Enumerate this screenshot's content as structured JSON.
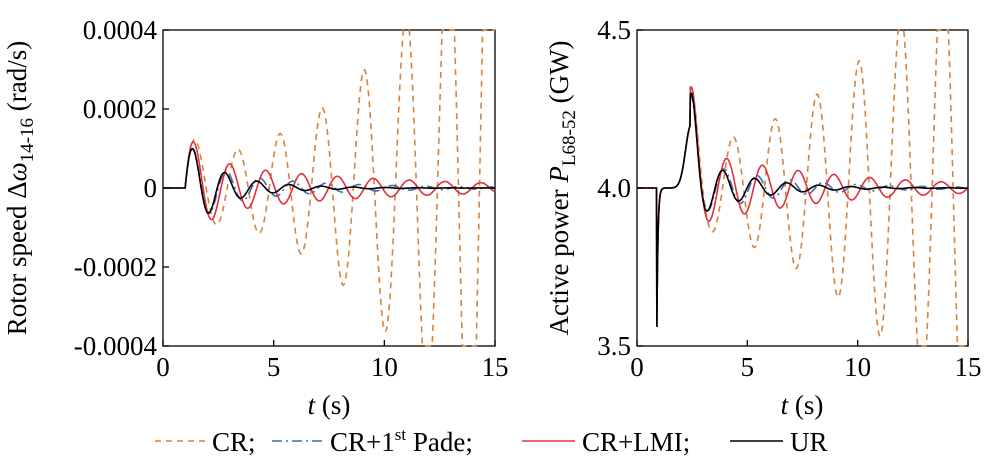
{
  "legend": [
    {
      "key": "cr",
      "label": "CR;"
    },
    {
      "key": "pade",
      "label_before": "CR+1",
      "label_sup": "st",
      "label_after": " Pade;"
    },
    {
      "key": "lmi",
      "label": "CR+LMI;"
    },
    {
      "key": "ur",
      "label": "UR"
    }
  ],
  "chart_data": [
    {
      "type": "line",
      "ylabel_prefix": "Rotor speed Δ",
      "ylabel_symbol": "ω",
      "ylabel_sub": "14-16",
      "ylabel_unit": " (rad/s)",
      "xlabel_var": "t",
      "xlabel_unit": " (s)",
      "xlim": [
        0,
        15
      ],
      "ylim": [
        -0.0004,
        0.0004
      ],
      "xticks": [
        0,
        5,
        10,
        15
      ],
      "xtick_labels": [
        "0",
        "5",
        "10",
        "15"
      ],
      "yticks": [
        -0.0004,
        -0.0002,
        0,
        0.0002,
        0.0004
      ],
      "ytick_labels": [
        "-0.0004",
        "-0.0002",
        "0",
        "0.0002",
        "0.0004"
      ],
      "series": [
        {
          "key": "cr",
          "name": "CR",
          "color": "#D9823B",
          "dash": "6,5",
          "model": {
            "kind": "rotor",
            "base": 7e-05,
            "growth": 0.205,
            "period": 1.9
          }
        },
        {
          "key": "pade",
          "name": "CR+1st Pade",
          "color": "#3F6BB5",
          "dash": "10,4,2,4",
          "model": {
            "kind": "rotor",
            "base": 4e-05,
            "growth": -0.22,
            "period": 1.5
          }
        },
        {
          "key": "lmi",
          "name": "CR+LMI",
          "color": "#E0303E",
          "dash": "",
          "model": {
            "kind": "rotor",
            "base": 6e-05,
            "growth": -0.12,
            "period": 1.62
          }
        },
        {
          "key": "ur",
          "name": "UR",
          "color": "#000000",
          "dash": "",
          "model": {
            "kind": "rotor",
            "base": 4e-05,
            "growth": -0.42,
            "period": 1.45
          }
        }
      ]
    },
    {
      "type": "line",
      "ylabel_prefix": "Active power ",
      "ylabel_symbol": "P",
      "ylabel_sub": "L68-52",
      "ylabel_unit": " (GW)",
      "xlabel_var": "t",
      "xlabel_unit": " (s)",
      "xlim": [
        0,
        15
      ],
      "ylim": [
        3.5,
        4.5
      ],
      "xticks": [
        0,
        5,
        10,
        15
      ],
      "xtick_labels": [
        "0",
        "5",
        "10",
        "15"
      ],
      "yticks": [
        3.5,
        4.0,
        4.5
      ],
      "ytick_labels": [
        "3.5",
        "4.0",
        "4.5"
      ],
      "series": [
        {
          "key": "cr",
          "name": "CR",
          "color": "#D9823B",
          "dash": "6,5",
          "model": {
            "kind": "power",
            "base": 0.12,
            "growth": 0.16,
            "period": 1.9
          }
        },
        {
          "key": "pade",
          "name": "CR+1st Pade",
          "color": "#3F6BB5",
          "dash": "10,4,2,4",
          "model": {
            "kind": "power",
            "base": 0.09,
            "growth": -0.28,
            "period": 1.5
          }
        },
        {
          "key": "lmi",
          "name": "CR+LMI",
          "color": "#E0303E",
          "dash": "",
          "model": {
            "kind": "power",
            "base": 0.12,
            "growth": -0.16,
            "period": 1.62
          }
        },
        {
          "key": "ur",
          "name": "UR",
          "color": "#000000",
          "dash": "",
          "model": {
            "kind": "power",
            "base": 0.1,
            "growth": -0.42,
            "period": 1.45
          }
        }
      ]
    }
  ]
}
